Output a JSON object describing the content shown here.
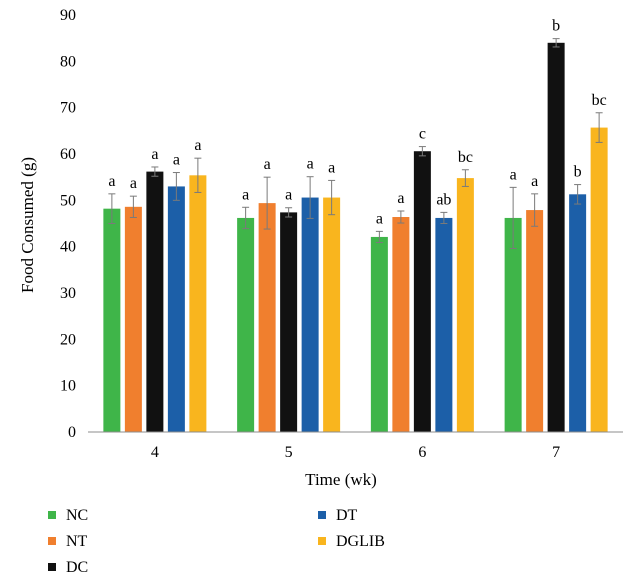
{
  "chart_data": {
    "type": "bar",
    "title": "",
    "xlabel": "Time (wk)",
    "ylabel": "Food Consumed (g)",
    "ylim": [
      0,
      90
    ],
    "yticks": [
      0,
      10,
      20,
      30,
      40,
      50,
      60,
      70,
      80,
      90
    ],
    "categories": [
      "4",
      "5",
      "6",
      "7"
    ],
    "grid": false,
    "legend_position": "bottom",
    "series": [
      {
        "name": "NC",
        "color": "#3fb549",
        "values": [
          48.2,
          46.2,
          42.1,
          46.2
        ],
        "errors": [
          3.2,
          2.3,
          1.2,
          6.6
        ],
        "labels": [
          "a",
          "a",
          "a",
          "a"
        ]
      },
      {
        "name": "NT",
        "color": "#f07f2e",
        "values": [
          48.6,
          49.4,
          46.4,
          47.9
        ],
        "errors": [
          2.3,
          5.6,
          1.3,
          3.5
        ],
        "labels": [
          "a",
          "a",
          "a",
          "a"
        ]
      },
      {
        "name": "DC",
        "color": "#111111",
        "values": [
          56.2,
          47.4,
          60.6,
          84.0
        ],
        "errors": [
          1.0,
          1.0,
          1.0,
          0.9
        ],
        "labels": [
          "a",
          "a",
          "c",
          "b"
        ]
      },
      {
        "name": "DT",
        "color": "#1c5fa8",
        "values": [
          53.0,
          50.6,
          46.2,
          51.3
        ],
        "errors": [
          3.0,
          4.5,
          1.2,
          2.1
        ],
        "labels": [
          "a",
          "a",
          "ab",
          "b"
        ]
      },
      {
        "name": "DGLIB",
        "color": "#f9b51e",
        "values": [
          55.4,
          50.6,
          54.8,
          65.7
        ],
        "errors": [
          3.7,
          3.7,
          1.8,
          3.2
        ],
        "labels": [
          "a",
          "a",
          "bc",
          "bc"
        ]
      }
    ]
  }
}
